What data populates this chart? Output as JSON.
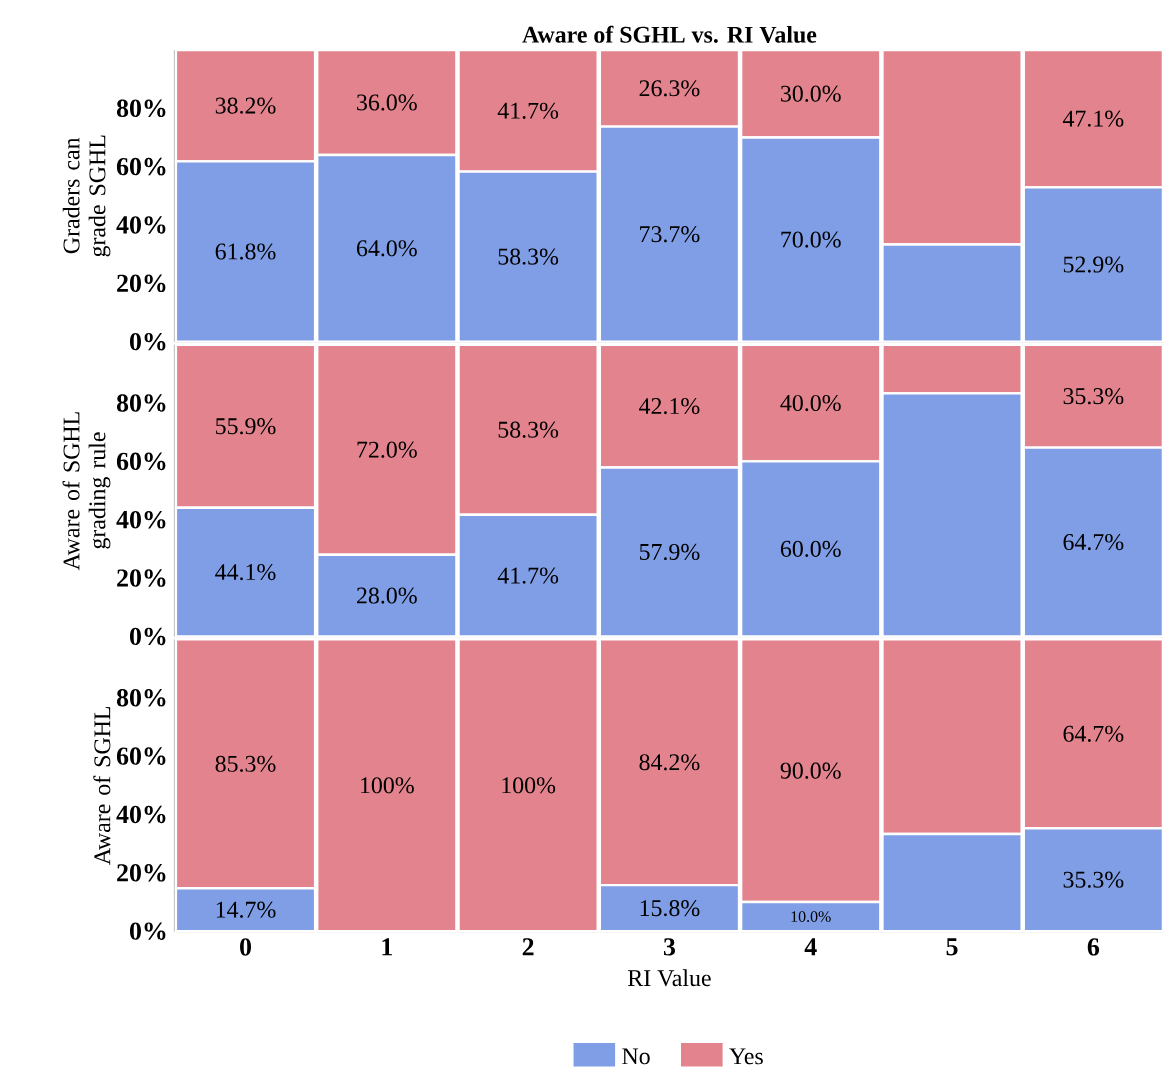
{
  "chart_data": [
    {
      "type": "bar",
      "title": "Aware of SGHL vs. RI Value",
      "ylabel": "Graders can grade SGHL",
      "stacked": true,
      "tick_labels": "y",
      "categories": [
        "0",
        "1",
        "2",
        "3",
        "4",
        "5",
        "6"
      ],
      "ylim": [
        0,
        100
      ],
      "yticks": [
        {
          "value": 0,
          "label": "0%"
        },
        {
          "value": 20,
          "label": "20%"
        },
        {
          "value": 40,
          "label": "40%"
        },
        {
          "value": 60,
          "label": "60%"
        },
        {
          "value": 80,
          "label": "80%"
        }
      ],
      "series": [
        {
          "color": "#7f9ee6",
          "values": [
            61.8,
            64.0,
            58.3,
            73.7,
            70.0,
            33.3,
            52.9
          ],
          "value_labels": [
            "61.8%",
            "64.0%",
            "58.3%",
            "73.7%",
            "70.0%",
            null,
            "52.9%"
          ]
        },
        {
          "color": "#e3838d",
          "values": [
            38.2,
            36.0,
            41.7,
            26.3,
            30.0,
            66.7,
            47.1
          ],
          "value_labels": [
            "38.2%",
            "36.0%",
            "41.7%",
            "26.3%",
            "30.0%",
            null,
            "47.1%"
          ]
        }
      ]
    },
    {
      "type": "bar",
      "ylabel": "Aware of  SGHL grading rule",
      "stacked": true,
      "tick_labels": "y",
      "categories": [
        "0",
        "1",
        "2",
        "3",
        "4",
        "5",
        "6"
      ],
      "ylim": [
        0,
        100
      ],
      "yticks": [
        {
          "value": 0,
          "label": "0%"
        },
        {
          "value": 20,
          "label": "20%"
        },
        {
          "value": 40,
          "label": "40%"
        },
        {
          "value": 60,
          "label": "60%"
        },
        {
          "value": 80,
          "label": "80%"
        }
      ],
      "series": [
        {
          "color": "#7f9ee6",
          "values": [
            44.1,
            28.0,
            41.7,
            57.9,
            60.0,
            83.3,
            64.7
          ],
          "value_labels": [
            "44.1%",
            "28.0%",
            "41.7%",
            "57.9%",
            "60.0%",
            null,
            "64.7%"
          ]
        },
        {
          "color": "#e3838d",
          "values": [
            55.9,
            72.0,
            58.3,
            42.1,
            40.0,
            16.7,
            35.3
          ],
          "value_labels": [
            "55.9%",
            "72.0%",
            "58.3%",
            "42.1%",
            "40.0%",
            null,
            "35.3%"
          ]
        }
      ]
    },
    {
      "type": "bar",
      "ylabel": "Aware of SGHL",
      "xlabel": "RI Value",
      "stacked": true,
      "legend": "bottom",
      "categories": [
        "0",
        "1",
        "2",
        "3",
        "4",
        "5",
        "6"
      ],
      "ylim": [
        0,
        100
      ],
      "yticks": [
        {
          "value": 0,
          "label": "0%"
        },
        {
          "value": 20,
          "label": "20%"
        },
        {
          "value": 40,
          "label": "40%"
        },
        {
          "value": 60,
          "label": "60%"
        },
        {
          "value": 80,
          "label": "80%"
        }
      ],
      "series": [
        {
          "name": "No",
          "color": "#7f9ee6",
          "values": [
            14.7,
            0,
            0,
            15.8,
            10.0,
            33.3,
            35.3
          ],
          "value_labels": [
            "14.7%",
            null,
            null,
            "15.8%",
            "10.0%",
            null,
            "35.3%"
          ]
        },
        {
          "name": "Yes",
          "color": "#e3838d",
          "values": [
            85.3,
            100,
            100,
            84.2,
            90.0,
            66.7,
            64.7
          ],
          "value_labels": [
            "85.3%",
            "100%",
            "100%",
            "84.2%",
            "90.0%",
            null,
            "64.7%"
          ]
        }
      ]
    }
  ]
}
